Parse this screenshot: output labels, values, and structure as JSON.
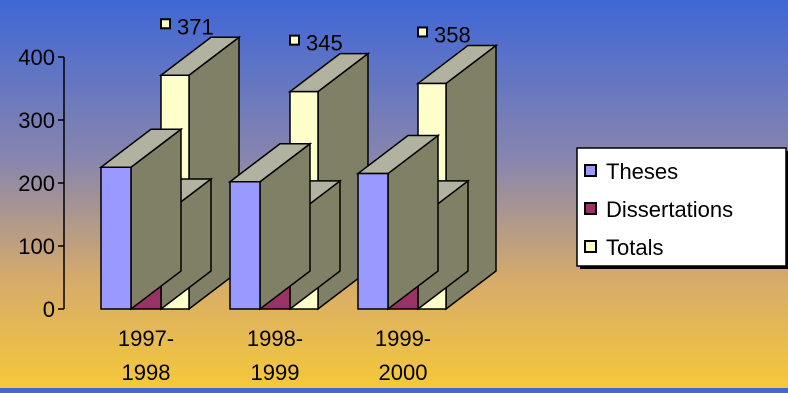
{
  "chart_data": {
    "type": "bar",
    "variant": "3d-clustered",
    "categories": [
      [
        "1997-",
        "1998"
      ],
      [
        "1998-",
        "1999"
      ],
      [
        "1999-",
        "2000"
      ]
    ],
    "series": [
      {
        "name": "Theses",
        "values": [
          225,
          202,
          215
        ],
        "color": "#9999ff"
      },
      {
        "name": "Dissertations",
        "values": [
          146,
          143,
          143
        ],
        "color": "#993366"
      },
      {
        "name": "Totals",
        "values": [
          371,
          345,
          358
        ],
        "color": "#ffffcc"
      }
    ],
    "data_labels": [
      "371",
      "345",
      "358"
    ],
    "y_ticks": [
      "0",
      "100",
      "200",
      "300",
      "400"
    ],
    "ylim": [
      0,
      400
    ],
    "grid": false,
    "legend_position": "right",
    "colors": {
      "side_dark": "#808066",
      "top": "#b2b2a0"
    }
  }
}
